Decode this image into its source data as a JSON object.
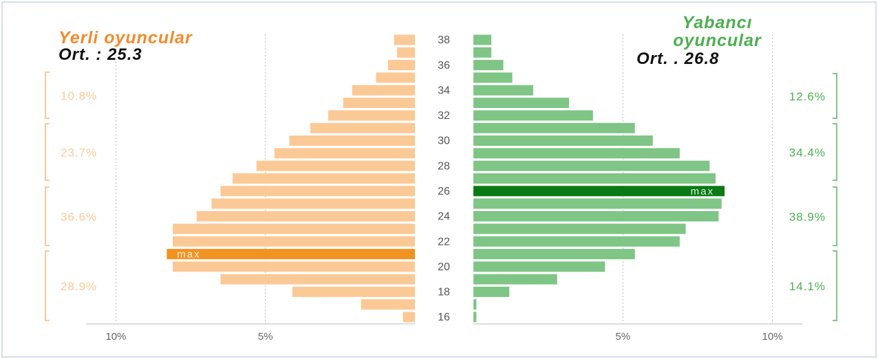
{
  "chart_data": {
    "type": "pyramid",
    "categories": [
      16,
      null,
      18,
      null,
      20,
      null,
      22,
      null,
      24,
      null,
      26,
      null,
      28,
      null,
      30,
      null,
      32,
      null,
      34,
      null,
      36,
      null,
      38
    ],
    "xlim": [
      0,
      11
    ],
    "xticks": [
      {
        "value": 5,
        "label": "5%"
      },
      {
        "value": 10,
        "label": "10%"
      }
    ],
    "max_label": "max",
    "series": [
      {
        "name": "Yerli oyuncular",
        "average_label": "Ort. : 25.3",
        "color": "#fbc996",
        "highlight_color": "#f29220",
        "title_color": "#f28b2c",
        "values": [
          0.4,
          1.8,
          4.1,
          6.5,
          8.1,
          8.3,
          8.1,
          8.1,
          7.3,
          6.8,
          6.5,
          6.1,
          5.3,
          4.7,
          4.2,
          3.5,
          2.9,
          2.4,
          2.1,
          1.3,
          0.9,
          0.6,
          0.7
        ],
        "groups": [
          {
            "value": 10.8,
            "label": "10.8%"
          },
          {
            "value": 23.7,
            "label": "23.7%"
          },
          {
            "value": 36.6,
            "label": "36.6%"
          },
          {
            "value": 28.9,
            "label": "28.9%"
          }
        ]
      },
      {
        "name": "Yabancı oyuncular",
        "average_label": "Ort. . 26.8",
        "color": "#7fc585",
        "highlight_color": "#0a7a14",
        "title_color": "#4caf50",
        "values": [
          0.1,
          0.1,
          1.2,
          2.8,
          4.4,
          5.4,
          6.9,
          7.1,
          8.2,
          8.3,
          8.4,
          8.1,
          7.9,
          6.9,
          6.0,
          5.4,
          4.0,
          3.2,
          2.0,
          1.3,
          1.0,
          0.6,
          0.6
        ],
        "groups": [
          {
            "value": 12.6,
            "label": "12.6%"
          },
          {
            "value": 34.4,
            "label": "34.4%"
          },
          {
            "value": 38.9,
            "label": "38.9%"
          },
          {
            "value": 14.1,
            "label": "14.1%"
          }
        ]
      }
    ]
  }
}
